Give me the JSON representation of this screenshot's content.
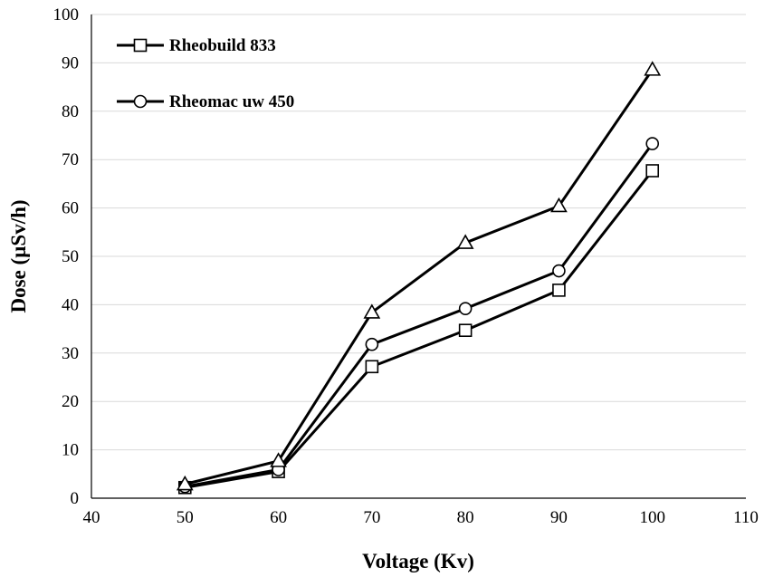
{
  "chart_data": {
    "type": "line",
    "title": "",
    "xlabel": "Voltage (Kv)",
    "ylabel": "Dose (µSv/h)",
    "xlim": [
      40,
      110
    ],
    "ylim": [
      0,
      100
    ],
    "xticks": [
      40,
      50,
      60,
      70,
      80,
      90,
      100,
      110
    ],
    "yticks": [
      0,
      10,
      20,
      30,
      40,
      50,
      60,
      70,
      80,
      90,
      100
    ],
    "grid": "horizontal",
    "legend_position": "top-left",
    "line_color": "#000000",
    "series": [
      {
        "name": "Rheobuild 833",
        "marker": "square",
        "x": [
          50,
          60,
          70,
          80,
          90,
          100
        ],
        "values": [
          2.2,
          5.5,
          27.2,
          34.7,
          43.0,
          67.7
        ]
      },
      {
        "name": "Rheomac uw 450",
        "marker": "circle",
        "x": [
          50,
          60,
          70,
          80,
          90,
          100
        ],
        "values": [
          2.4,
          5.9,
          31.8,
          39.2,
          47.0,
          73.3
        ]
      },
      {
        "marker": "triangle",
        "x": [
          50,
          60,
          70,
          80,
          90,
          100
        ],
        "values": [
          2.9,
          7.7,
          38.4,
          52.8,
          60.4,
          88.6
        ]
      }
    ]
  }
}
